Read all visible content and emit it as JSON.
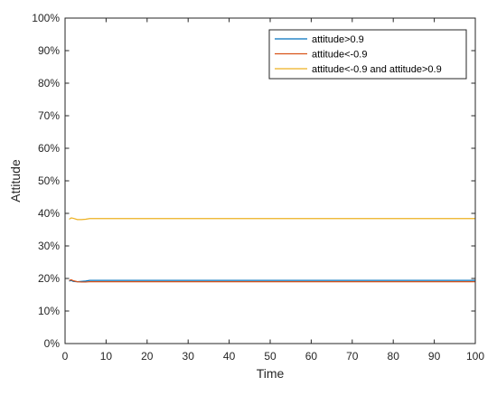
{
  "chart_data": {
    "type": "line",
    "xlabel": "Time",
    "ylabel": "Attitude",
    "xlim": [
      0,
      100
    ],
    "ylim": [
      0,
      100
    ],
    "grid": false,
    "legend_position": "top-right",
    "x_ticks": [
      0,
      10,
      20,
      30,
      40,
      50,
      60,
      70,
      80,
      90,
      100
    ],
    "x_tick_labels": [
      "0",
      "10",
      "20",
      "30",
      "40",
      "50",
      "60",
      "70",
      "80",
      "90",
      "100"
    ],
    "y_ticks": [
      0,
      10,
      20,
      30,
      40,
      50,
      60,
      70,
      80,
      90,
      100
    ],
    "y_tick_labels": [
      "0%",
      "10%",
      "20%",
      "30%",
      "40%",
      "50%",
      "60%",
      "70%",
      "80%",
      "90%",
      "100%"
    ],
    "series": [
      {
        "name": "attitude>0.9",
        "color": "#0072BD",
        "points": [
          [
            1,
            19.2
          ],
          [
            1.5,
            19.4
          ],
          [
            2,
            19.1
          ],
          [
            3,
            19.0
          ],
          [
            4,
            19.1
          ],
          [
            5,
            19.2
          ],
          [
            6,
            19.4
          ],
          [
            7,
            19.4
          ],
          [
            10,
            19.4
          ],
          [
            20,
            19.4
          ],
          [
            30,
            19.4
          ],
          [
            40,
            19.4
          ],
          [
            50,
            19.4
          ],
          [
            60,
            19.4
          ],
          [
            70,
            19.4
          ],
          [
            80,
            19.4
          ],
          [
            90,
            19.4
          ],
          [
            100,
            19.4
          ]
        ]
      },
      {
        "name": "attitude<-0.9",
        "color": "#D95319",
        "points": [
          [
            1,
            19.4
          ],
          [
            1.5,
            19.6
          ],
          [
            2,
            19.3
          ],
          [
            3,
            19.0
          ],
          [
            4,
            18.9
          ],
          [
            5,
            18.9
          ],
          [
            6,
            19.0
          ],
          [
            7,
            19.0
          ],
          [
            10,
            19.0
          ],
          [
            20,
            19.0
          ],
          [
            30,
            19.0
          ],
          [
            40,
            19.0
          ],
          [
            50,
            19.0
          ],
          [
            60,
            19.0
          ],
          [
            70,
            19.0
          ],
          [
            80,
            19.0
          ],
          [
            90,
            19.0
          ],
          [
            100,
            19.0
          ]
        ]
      },
      {
        "name": "attitude<-0.9 and attitude>0.9",
        "color": "#EDB120",
        "points": [
          [
            1,
            38.2
          ],
          [
            1.5,
            38.6
          ],
          [
            2,
            38.5
          ],
          [
            3,
            38.1
          ],
          [
            4,
            38.1
          ],
          [
            5,
            38.2
          ],
          [
            6,
            38.4
          ],
          [
            7,
            38.4
          ],
          [
            10,
            38.4
          ],
          [
            20,
            38.4
          ],
          [
            30,
            38.4
          ],
          [
            40,
            38.4
          ],
          [
            50,
            38.4
          ],
          [
            60,
            38.4
          ],
          [
            70,
            38.4
          ],
          [
            80,
            38.4
          ],
          [
            90,
            38.4
          ],
          [
            100,
            38.4
          ]
        ]
      }
    ]
  }
}
